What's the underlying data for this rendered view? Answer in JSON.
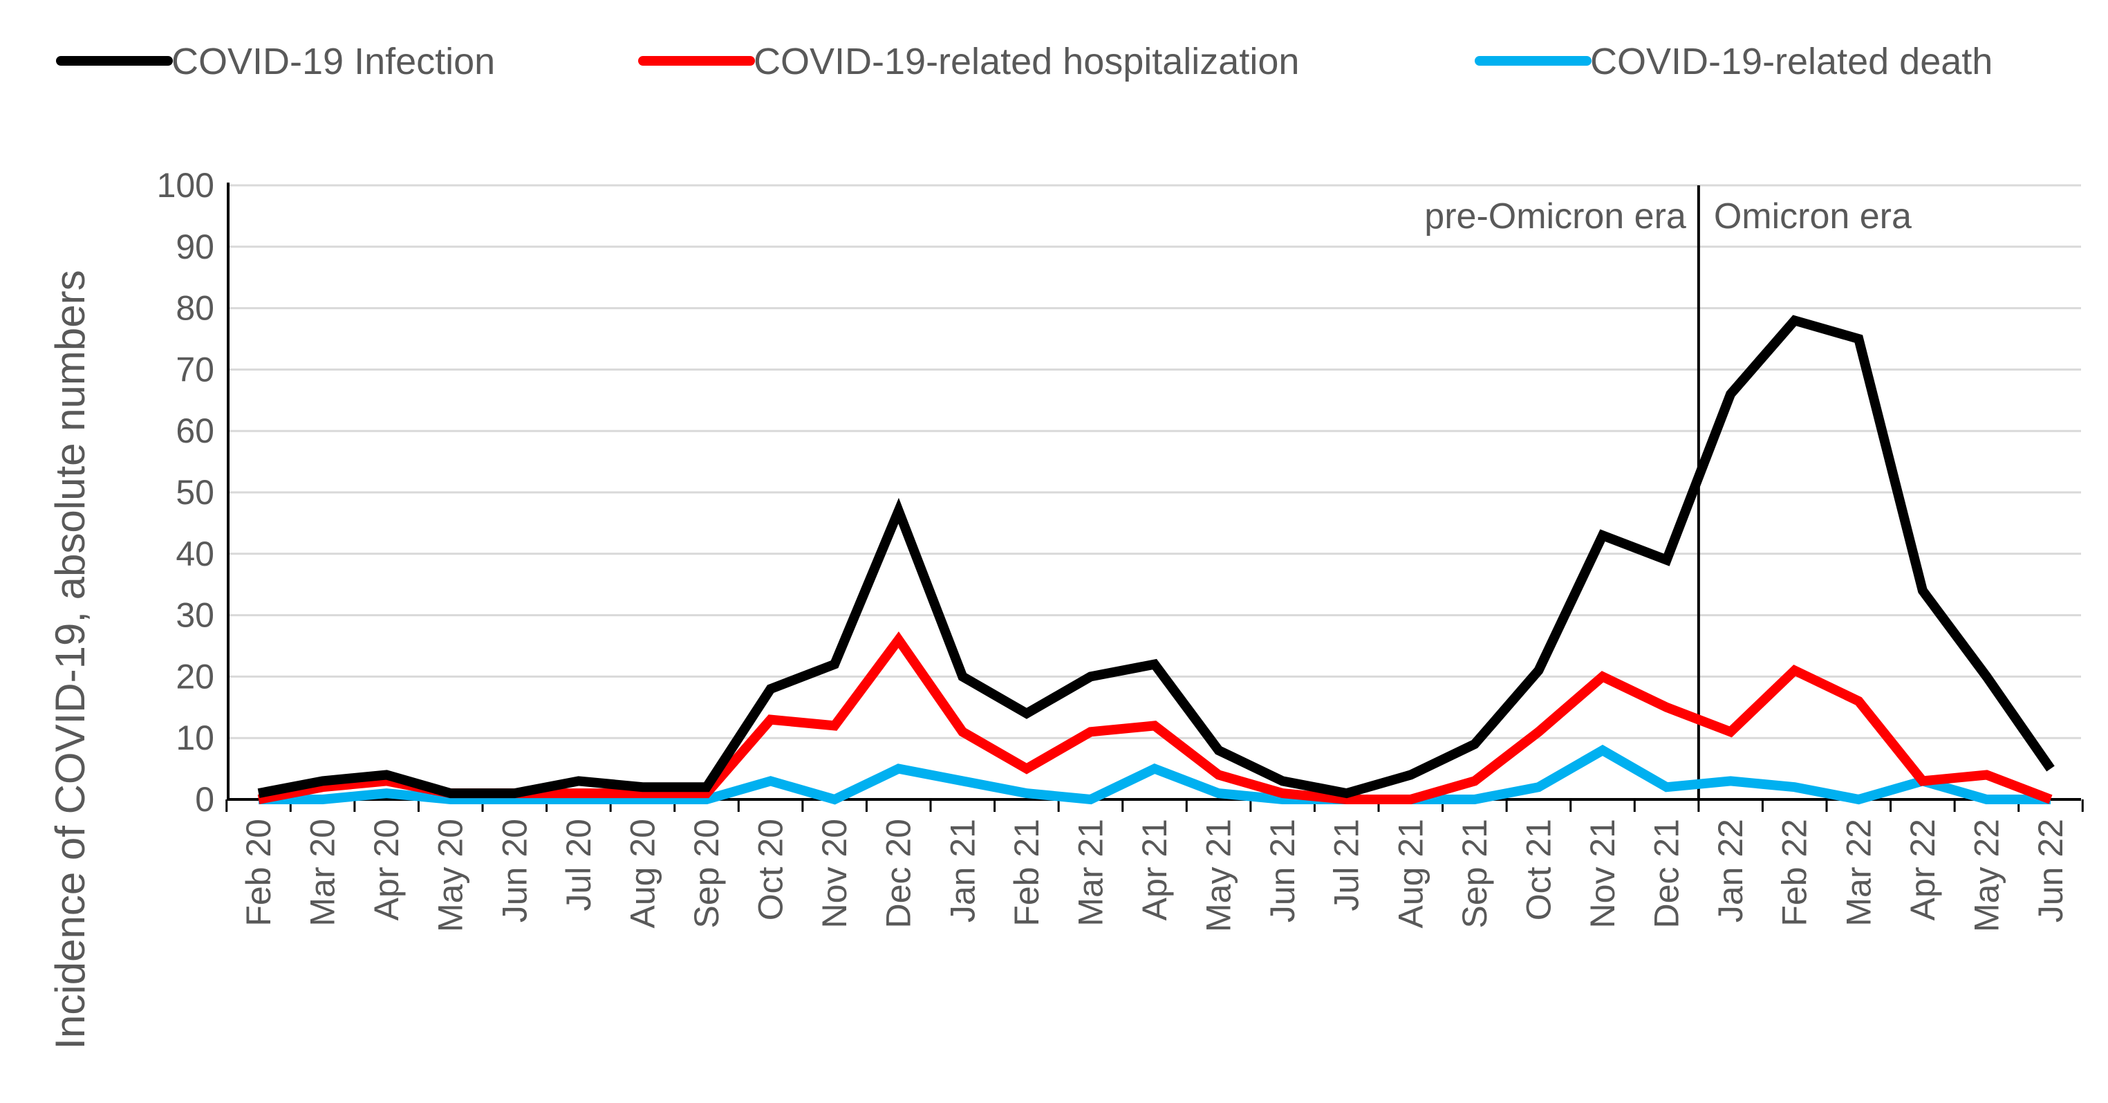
{
  "chart_data": {
    "type": "line",
    "title": "",
    "xlabel": "",
    "ylabel": "Incidence of COVID-19, absolute numbers",
    "ylim": [
      0,
      100
    ],
    "yticks": [
      0,
      10,
      20,
      30,
      40,
      50,
      60,
      70,
      80,
      90,
      100
    ],
    "grid": true,
    "legend_position": "top",
    "categories": [
      "Feb 20",
      "Mar 20",
      "Apr 20",
      "May 20",
      "Jun 20",
      "Jul 20",
      "Aug 20",
      "Sep 20",
      "Oct 20",
      "Nov 20",
      "Dec 20",
      "Jan 21",
      "Feb 21",
      "Mar 21",
      "Apr 21",
      "May 21",
      "Jun 21",
      "Jul 21",
      "Aug 21",
      "Sep 21",
      "Oct 21",
      "Nov 21",
      "Dec 21",
      "Jan 22",
      "Feb 22",
      "Mar 22",
      "Apr 22",
      "May 22",
      "Jun 22"
    ],
    "series": [
      {
        "name": "COVID-19 Infection",
        "color": "#000000",
        "values": [
          1,
          3,
          4,
          1,
          1,
          3,
          2,
          2,
          18,
          22,
          47,
          20,
          14,
          20,
          22,
          8,
          3,
          1,
          4,
          9,
          21,
          43,
          39,
          66,
          78,
          75,
          34,
          20,
          5
        ]
      },
      {
        "name": "COVID-19-related hospitalization",
        "color": "#ff0000",
        "values": [
          0,
          2,
          3,
          1,
          1,
          1,
          1,
          1,
          13,
          12,
          26,
          11,
          5,
          11,
          12,
          4,
          1,
          0,
          0,
          3,
          11,
          20,
          15,
          11,
          21,
          16,
          3,
          4,
          0
        ]
      },
      {
        "name": "COVID-19-related death",
        "color": "#00b0f0",
        "values": [
          0,
          0,
          1,
          0,
          0,
          0,
          0,
          0,
          3,
          0,
          5,
          3,
          1,
          0,
          5,
          1,
          0,
          0,
          0,
          0,
          2,
          8,
          2,
          3,
          2,
          0,
          3,
          0,
          0
        ]
      }
    ],
    "annotations": {
      "divider_between": [
        "Dec 21",
        "Jan 22"
      ],
      "left_label": "pre-Omicron era",
      "right_label": "Omicron era"
    }
  }
}
